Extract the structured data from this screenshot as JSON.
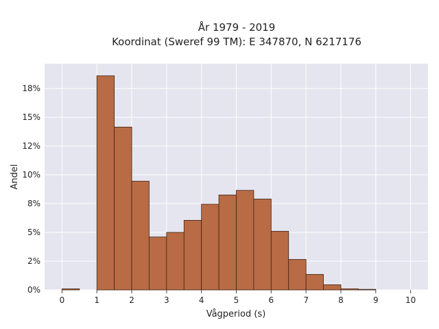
{
  "chart_data": {
    "type": "bar",
    "title_line1": "År 1979 - 2019",
    "title_line2": "Koordinat (Sweref 99 TM): E 347870, N 6217176",
    "xlabel": "Vågperiod (s)",
    "ylabel": "Andel",
    "xlim": [
      -0.5,
      10.5
    ],
    "ylim": [
      0,
      0.1965
    ],
    "x_ticks": [
      0,
      1,
      2,
      3,
      4,
      5,
      6,
      7,
      8,
      9,
      10
    ],
    "x_tick_labels": [
      "0",
      "1",
      "2",
      "3",
      "4",
      "5",
      "6",
      "7",
      "8",
      "9",
      "10"
    ],
    "y_ticks": [
      0,
      0.025,
      0.05,
      0.075,
      0.1,
      0.125,
      0.15,
      0.175
    ],
    "y_tick_labels": [
      "0%",
      "2%",
      "5%",
      "8%",
      "10%",
      "12%",
      "15%",
      "18%"
    ],
    "bin_width": 0.5,
    "bins": [
      {
        "x0": 0.0,
        "value": 0.001
      },
      {
        "x0": 0.5,
        "value": 0.0
      },
      {
        "x0": 1.0,
        "value": 0.186
      },
      {
        "x0": 1.5,
        "value": 0.1415
      },
      {
        "x0": 2.0,
        "value": 0.0945
      },
      {
        "x0": 2.5,
        "value": 0.046
      },
      {
        "x0": 3.0,
        "value": 0.05
      },
      {
        "x0": 3.5,
        "value": 0.0605
      },
      {
        "x0": 4.0,
        "value": 0.0745
      },
      {
        "x0": 4.5,
        "value": 0.0825
      },
      {
        "x0": 5.0,
        "value": 0.0865
      },
      {
        "x0": 5.5,
        "value": 0.079
      },
      {
        "x0": 6.0,
        "value": 0.051
      },
      {
        "x0": 6.5,
        "value": 0.0265
      },
      {
        "x0": 7.0,
        "value": 0.0135
      },
      {
        "x0": 7.5,
        "value": 0.0045
      },
      {
        "x0": 8.0,
        "value": 0.001
      },
      {
        "x0": 8.5,
        "value": 0.0005
      }
    ],
    "grid": true,
    "colors": {
      "bar_fill": "#b86b44",
      "bar_stroke": "#3d2417",
      "plot_bg": "#e5e5ef",
      "grid": "#ffffff"
    }
  }
}
